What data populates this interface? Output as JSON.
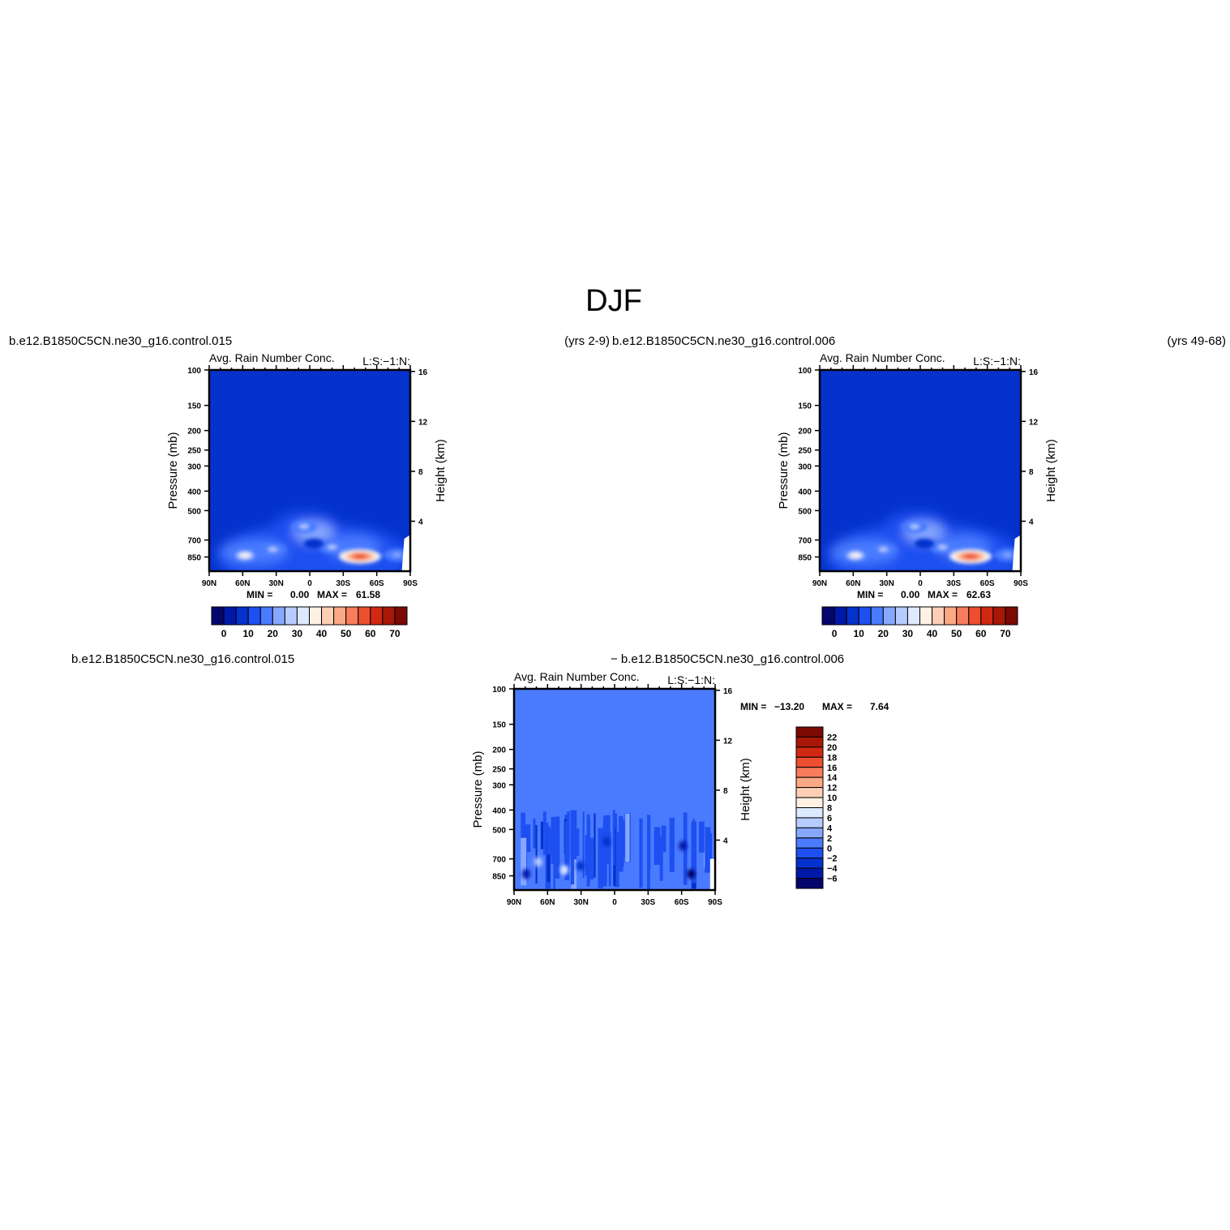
{
  "figure": {
    "title": "DJF",
    "top_left_case": "b.e12.B1850C5CN.ne30_g16.control.015",
    "top_left_years": "(yrs 2-9)",
    "top_right_case": "b.e12.B1850C5CN.ne30_g16.control.006",
    "top_right_years": "(yrs 49-68)",
    "diff_left_case": "b.e12.B1850C5CN.ne30_g16.control.015",
    "diff_right_case": "− b.e12.B1850C5CN.ne30_g16.control.006"
  },
  "chart_data": [
    {
      "type": "heatmap",
      "panel": "case1",
      "title": "Avg. Rain Number Conc.",
      "subtitle": "L:S:−1:N:",
      "ylabel": "Pressure (mb)",
      "ylabel_right": "Height (km)",
      "x_ticks": [
        "90N",
        "60N",
        "30N",
        "0",
        "30S",
        "60S",
        "90S"
      ],
      "y_ticks": [
        100,
        150,
        200,
        250,
        300,
        400,
        500,
        700,
        850
      ],
      "y_right_ticks": [
        16,
        12,
        8,
        4
      ],
      "min_label": "MIN =",
      "min_value": "0.00",
      "max_label": "MAX =",
      "max_value": "61.58",
      "colorbar_labels": [
        "0",
        "10",
        "20",
        "30",
        "40",
        "50",
        "60",
        "70"
      ],
      "colors": [
        "#05066b",
        "#0018a8",
        "#0532cc",
        "#1e4ff0",
        "#4a7bff",
        "#86a8ff",
        "#b6cbff",
        "#dde9ff",
        "#fff0e4",
        "#fdd0b6",
        "#fba985",
        "#f77d5c",
        "#ec4f2f",
        "#d12813",
        "#a81808",
        "#7a0a03"
      ],
      "features": [
        {
          "lat": 58,
          "p": 835,
          "level": 8
        },
        {
          "lat": 33,
          "p": 780,
          "level": 6
        },
        {
          "lat": 5,
          "p": 600,
          "level": 6
        },
        {
          "lat": -20,
          "p": 760,
          "level": 6
        },
        {
          "lat": -45,
          "p": 845,
          "level": 12
        },
        {
          "lat": -78,
          "p": 830,
          "level": 5
        }
      ]
    },
    {
      "type": "heatmap",
      "panel": "case2",
      "title": "Avg. Rain Number Conc.",
      "subtitle": "L:S:−1:N:",
      "ylabel": "Pressure (mb)",
      "ylabel_right": "Height (km)",
      "x_ticks": [
        "90N",
        "60N",
        "30N",
        "0",
        "30S",
        "60S",
        "90S"
      ],
      "y_ticks": [
        100,
        150,
        200,
        250,
        300,
        400,
        500,
        700,
        850
      ],
      "y_right_ticks": [
        16,
        12,
        8,
        4
      ],
      "min_label": "MIN =",
      "min_value": "0.00",
      "max_label": "MAX =",
      "max_value": "62.63",
      "colorbar_labels": [
        "0",
        "10",
        "20",
        "30",
        "40",
        "50",
        "60",
        "70"
      ],
      "colors": [
        "#05066b",
        "#0018a8",
        "#0532cc",
        "#1e4ff0",
        "#4a7bff",
        "#86a8ff",
        "#b6cbff",
        "#dde9ff",
        "#fff0e4",
        "#fdd0b6",
        "#fba985",
        "#f77d5c",
        "#ec4f2f",
        "#d12813",
        "#a81808",
        "#7a0a03"
      ],
      "features": [
        {
          "lat": 58,
          "p": 835,
          "level": 8
        },
        {
          "lat": 33,
          "p": 780,
          "level": 6
        },
        {
          "lat": 5,
          "p": 600,
          "level": 6
        },
        {
          "lat": -20,
          "p": 760,
          "level": 6
        },
        {
          "lat": -45,
          "p": 845,
          "level": 12
        },
        {
          "lat": -78,
          "p": 830,
          "level": 5
        }
      ]
    },
    {
      "type": "heatmap",
      "panel": "difference",
      "title": "Avg. Rain Number Conc.",
      "subtitle": "L:S:−1:N:",
      "ylabel": "Pressure (mb)",
      "ylabel_right": "Height (km)",
      "x_ticks": [
        "90N",
        "60N",
        "30N",
        "0",
        "30S",
        "60S",
        "90S"
      ],
      "y_ticks": [
        100,
        150,
        200,
        250,
        300,
        400,
        500,
        700,
        850
      ],
      "y_right_ticks": [
        16,
        12,
        8,
        4
      ],
      "min_label": "MIN =",
      "min_value": "−13.20",
      "max_label": "MAX =",
      "max_value": "7.64",
      "colorbar_labels": [
        "22",
        "20",
        "18",
        "16",
        "14",
        "12",
        "10",
        "8",
        "6",
        "4",
        "2",
        "0",
        "−2",
        "−4",
        "−6"
      ],
      "colors": [
        "#7a0a03",
        "#a81808",
        "#d12813",
        "#ec4f2f",
        "#f77d5c",
        "#fba985",
        "#fdd0b6",
        "#fff0e4",
        "#dde9ff",
        "#b6cbff",
        "#86a8ff",
        "#4a7bff",
        "#1e4ff0",
        "#0532cc",
        "#0018a8",
        "#05066b"
      ]
    }
  ]
}
